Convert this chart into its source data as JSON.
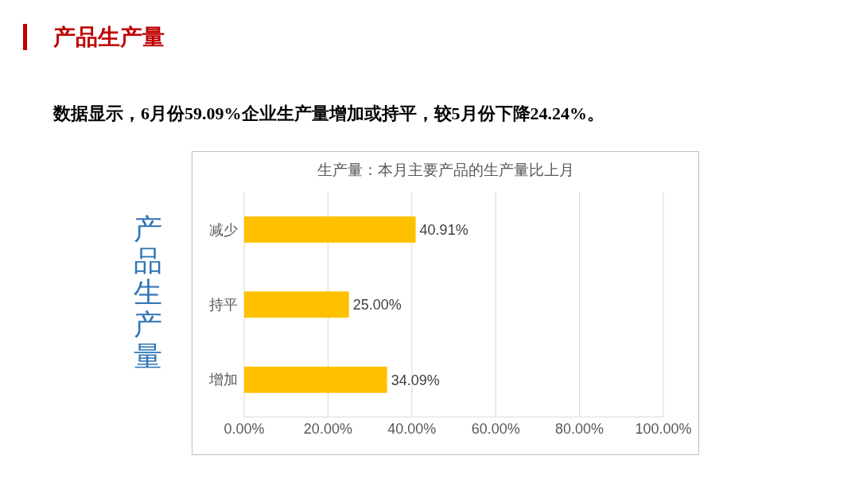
{
  "chart_data": {
    "type": "bar",
    "orientation": "horizontal",
    "title": "生产量：本月主要产品的生产量比上月",
    "subtitle": "数据显示，6月份59.09%企业生产量增加或持平，较5月份下降24.24%。",
    "annotations": [
      "产品生产量"
    ],
    "ylabel": "产品生产量",
    "categories": [
      "减少",
      "持平",
      "增加"
    ],
    "values": [
      40.91,
      25,
      34.09
    ],
    "value_labels": [
      "40.91%",
      "25.00%",
      "34.09%"
    ],
    "color": "#ffc000",
    "xlim": [
      0,
      100
    ],
    "xticks": [
      {
        "value": 0,
        "label": "0.00%"
      },
      {
        "value": 20,
        "label": "20.00%"
      },
      {
        "value": 40,
        "label": "40.00%"
      },
      {
        "value": 60,
        "label": "60.00%"
      },
      {
        "value": 80,
        "label": "80.00%"
      },
      {
        "value": 100,
        "label": "100.00%"
      }
    ],
    "grid": "x",
    "legend": false
  }
}
